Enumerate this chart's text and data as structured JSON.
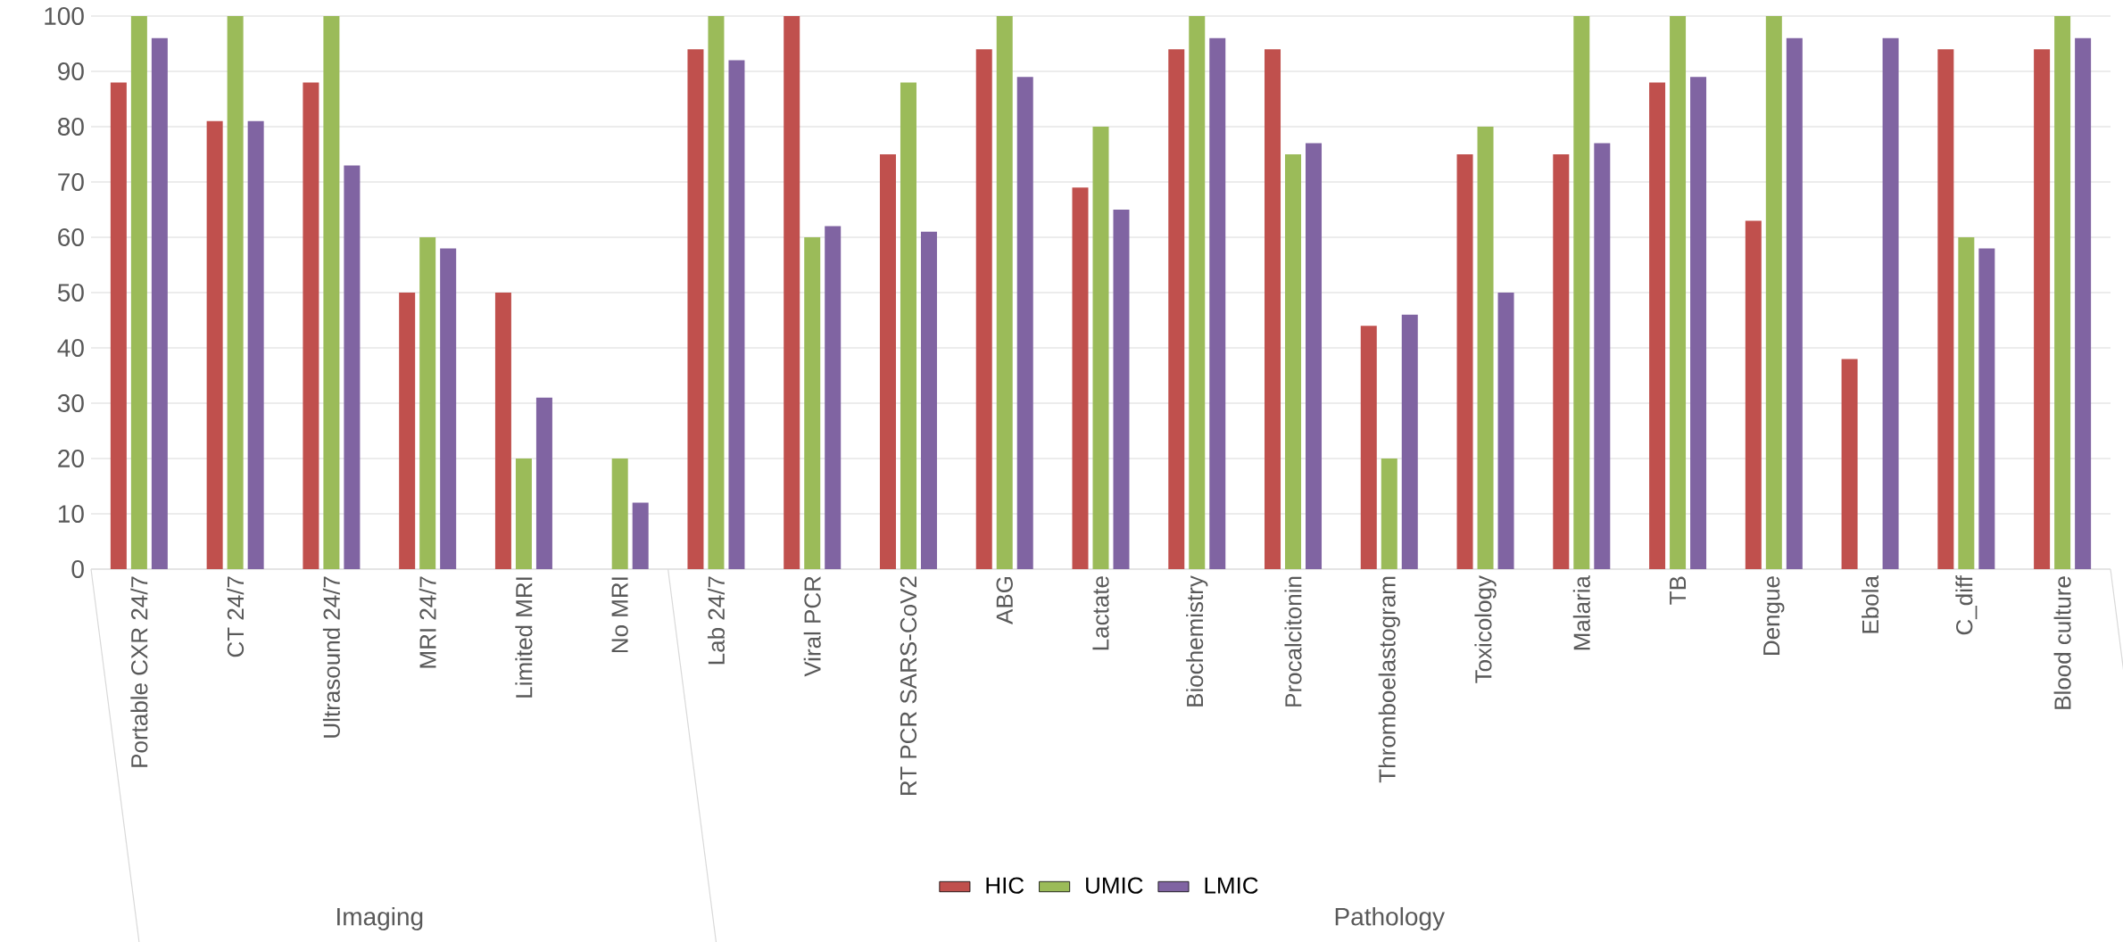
{
  "chart_data": {
    "type": "bar",
    "categories": [
      "Portable CXR 24/7",
      "CT 24/7",
      "Ultrasound 24/7",
      "MRI 24/7",
      "Limited MRI",
      "No MRI",
      "Lab 24/7",
      "Viral PCR",
      "RT PCR SARS-CoV2",
      "ABG",
      "Lactate",
      "Biochemistry",
      "Procalcitonin",
      "Thromboelastogram",
      "Toxicology",
      "Malaria",
      "TB",
      "Dengue",
      "Ebola",
      "C_diff",
      "Blood culture"
    ],
    "series": [
      {
        "name": "HIC",
        "color": "#c0504d",
        "values": [
          88,
          81,
          88,
          50,
          50,
          null,
          94,
          100,
          75,
          94,
          69,
          94,
          94,
          44,
          75,
          75,
          88,
          63,
          38,
          94,
          94
        ]
      },
      {
        "name": "UMIC",
        "color": "#9bbb59",
        "values": [
          100,
          100,
          100,
          60,
          20,
          20,
          100,
          60,
          88,
          100,
          80,
          100,
          75,
          20,
          80,
          100,
          100,
          100,
          null,
          60,
          100
        ]
      },
      {
        "name": "LMIC",
        "color": "#8064a2",
        "values": [
          96,
          81,
          73,
          58,
          31,
          12,
          92,
          62,
          61,
          89,
          65,
          96,
          77,
          46,
          50,
          77,
          89,
          96,
          96,
          58,
          96
        ]
      }
    ],
    "ylim": [
      0,
      100
    ],
    "yticks": [
      0,
      10,
      20,
      30,
      40,
      50,
      60,
      70,
      80,
      90,
      100
    ],
    "grid": "y",
    "legend": "bottom",
    "annotations": [
      "Imaging",
      "Pathology"
    ]
  }
}
